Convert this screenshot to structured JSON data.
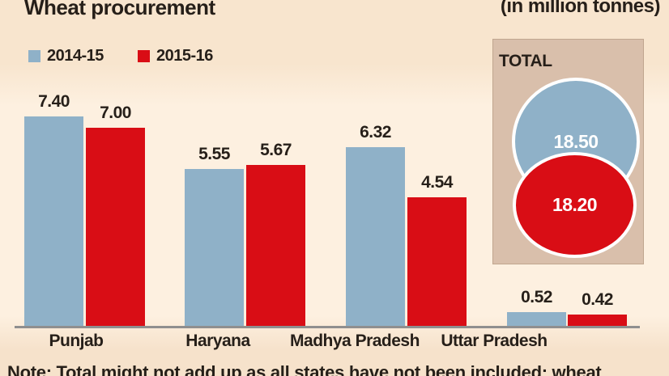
{
  "title": "Wheat procurement",
  "units_label": "(in million tonnes)",
  "note": "Note: Total might not add up as all states have not been included; wheat",
  "total_label": "TOTAL",
  "colors": {
    "series_2014_15": "#8fb1c8",
    "series_2015_16": "#d90d15",
    "background": "#f9e8d2",
    "total_box": "#d9bfab",
    "axis_line": "#8f8f8f",
    "text": "#261f19",
    "bubble_text": "#ffffff"
  },
  "chart_data": {
    "type": "bar",
    "title": "Wheat procurement",
    "units": "million tonnes",
    "categories": [
      "Punjab",
      "Haryana",
      "Madhya Pradesh",
      "Uttar Pradesh"
    ],
    "series": [
      {
        "name": "2014-15",
        "color": "#8fb1c8",
        "values": [
          7.4,
          5.55,
          6.32,
          0.52
        ],
        "total": 18.5
      },
      {
        "name": "2015-16",
        "color": "#d90d15",
        "values": [
          7.0,
          5.67,
          4.54,
          0.42
        ],
        "total": 18.2
      }
    ],
    "value_label_format": "2-decimals",
    "ylim": [
      0,
      8
    ],
    "grid": false,
    "legend_position": "top-left",
    "totals_panel_label": "TOTAL"
  }
}
